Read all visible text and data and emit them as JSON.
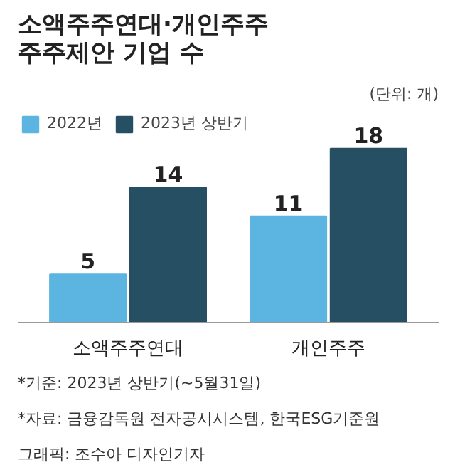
{
  "chart_data": {
    "type": "bar",
    "title": "소액주주연대·개인주주\n주주제안 기업 수",
    "subtitle": "(단위: 개)",
    "categories": [
      "소액주주연대",
      "개인주주"
    ],
    "series": [
      {
        "name": "2022년",
        "color": "#5bb5e0",
        "values": [
          5,
          11
        ]
      },
      {
        "name": "2023년 상반기",
        "color": "#264f63",
        "values": [
          14,
          18
        ]
      }
    ],
    "tick_labels": "x",
    "data_labels": true,
    "legend": "top left",
    "grid": false,
    "annotations": [
      "*기준: 2023년 상반기(~5월31일)",
      "*자료: 금융감독원 전자공시시스템, 한국ESG기준원",
      "그래픽: 조수아 디자인기자"
    ]
  }
}
